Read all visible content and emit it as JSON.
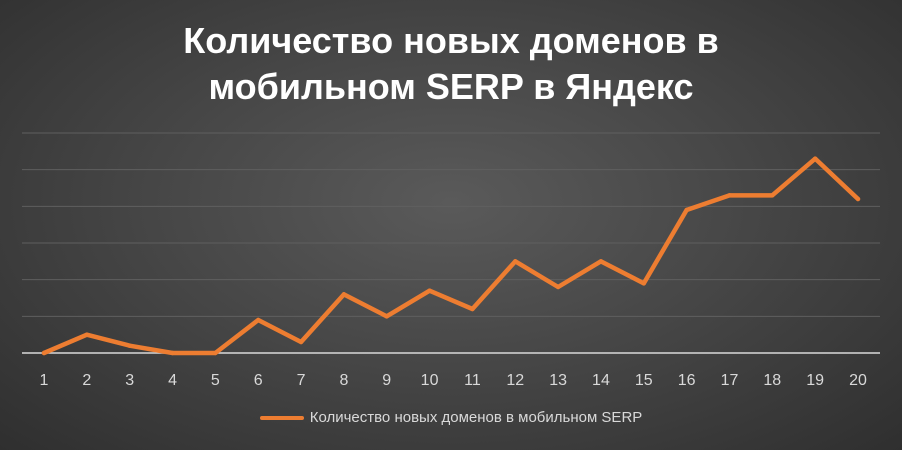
{
  "chart_data": {
    "type": "line",
    "title": "Количество новых доменов в мобильном SERP в Яндекс",
    "title_lines": [
      "Количество новых доменов в",
      "мобильном SERP в Яндекс"
    ],
    "xlabel": "",
    "ylabel": "",
    "categories": [
      "1",
      "2",
      "3",
      "4",
      "5",
      "6",
      "7",
      "8",
      "9",
      "10",
      "11",
      "12",
      "13",
      "14",
      "15",
      "16",
      "17",
      "18",
      "19",
      "20"
    ],
    "series": [
      {
        "name": "Количество новых доменов в мобильном SERP",
        "color": "#ED7D31",
        "values": [
          0,
          0.5,
          0.2,
          0,
          0,
          0.9,
          0.3,
          1.6,
          1.0,
          1.7,
          1.2,
          2.5,
          1.8,
          2.5,
          1.9,
          3.9,
          4.3,
          4.3,
          5.3,
          4.2
        ]
      }
    ],
    "ylim": [
      0,
      6
    ],
    "y_gridline_step": 1,
    "y_tick_labels_visible": false,
    "grid": true,
    "legend_position": "bottom"
  },
  "style": {
    "background": "#404040",
    "gridline_color": "#5f5f5f",
    "axis_color": "#d9d9d9",
    "text_color": "#d9d9d9",
    "title_color": "#ffffff"
  }
}
